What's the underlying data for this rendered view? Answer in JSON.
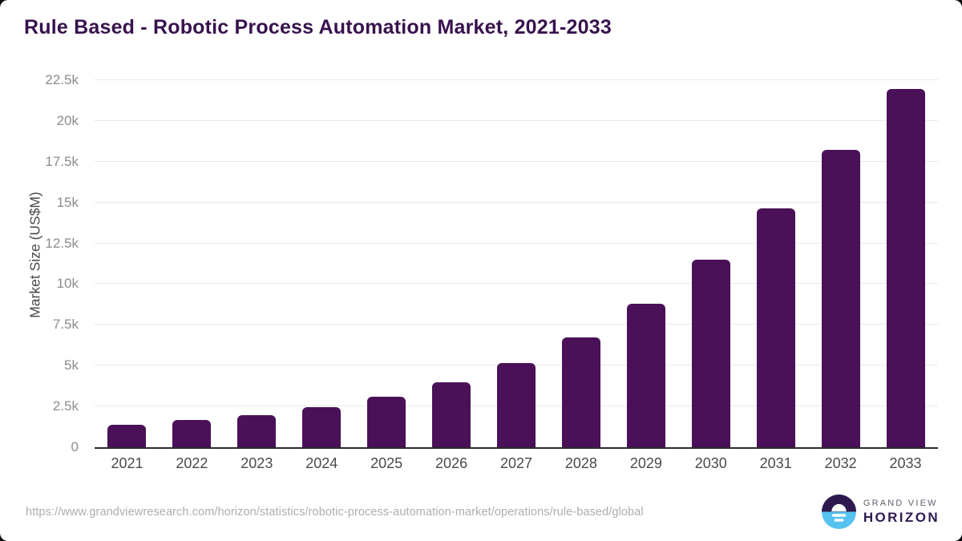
{
  "chart_data": {
    "type": "bar",
    "title": "Rule Based - Robotic Process Automation Market, 2021-2033",
    "xlabel": "",
    "ylabel": "Market Size (US$M)",
    "categories": [
      "2021",
      "2022",
      "2023",
      "2024",
      "2025",
      "2026",
      "2027",
      "2028",
      "2029",
      "2030",
      "2031",
      "2032",
      "2033"
    ],
    "values": [
      1370,
      1650,
      1970,
      2460,
      3110,
      4000,
      5150,
      6720,
      8790,
      11490,
      14660,
      18230,
      21940
    ],
    "ylim": [
      0,
      22500
    ],
    "yticks": [
      {
        "value": 0,
        "label": "0"
      },
      {
        "value": 2500,
        "label": "2.5k"
      },
      {
        "value": 5000,
        "label": "5k"
      },
      {
        "value": 7500,
        "label": "7.5k"
      },
      {
        "value": 10000,
        "label": "10k"
      },
      {
        "value": 12500,
        "label": "12.5k"
      },
      {
        "value": 15000,
        "label": "15k"
      },
      {
        "value": 17500,
        "label": "17.5k"
      },
      {
        "value": 20000,
        "label": "20k"
      },
      {
        "value": 22500,
        "label": "22.5k"
      }
    ],
    "grid": "horizontal",
    "legend": "none"
  },
  "footer": {
    "source_url": "https://www.grandviewresearch.com/horizon/statistics/robotic-process-automation-market/operations/rule-based/global",
    "logo": {
      "top_text": "GRAND VIEW",
      "bottom_text": "HORIZON"
    }
  },
  "colors": {
    "bar": "#4a1158",
    "title_text": "#38124e",
    "axis_text": "#4a4a4a",
    "tick_text": "#8c8c8c",
    "gridline": "#e9e9e9",
    "axis_line": "#2b2b2b",
    "url_text": "#aeaeae",
    "logo_blue": "#56c2f0",
    "logo_purple": "#2e1a4e",
    "page_background": "#0c0c0e",
    "card_background": "#ffffff"
  }
}
